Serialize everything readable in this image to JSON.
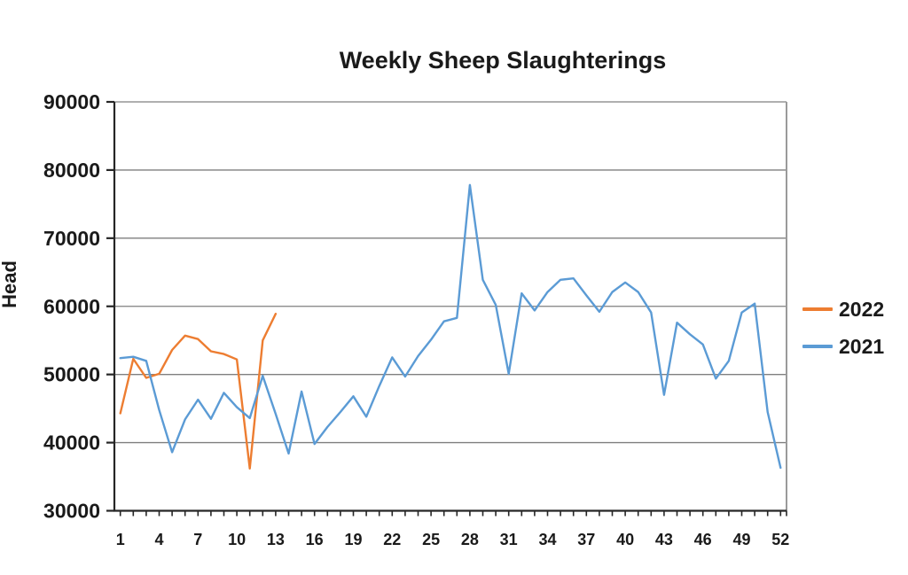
{
  "title": "Weekly Sheep Slaughterings",
  "y_axis": {
    "label": "Head",
    "min": 30000,
    "max": 90000,
    "step": 10000,
    "tick_labels": [
      "30000",
      "40000",
      "50000",
      "60000",
      "70000",
      "80000",
      "90000"
    ]
  },
  "x_axis": {
    "tick_labels": [
      "1",
      "4",
      "7",
      "10",
      "13",
      "16",
      "19",
      "22",
      "25",
      "28",
      "31",
      "34",
      "37",
      "40",
      "43",
      "46",
      "49",
      "52"
    ],
    "weeks_total": 52
  },
  "legend": [
    {
      "label": "2022",
      "color": "#ED7D31"
    },
    {
      "label": "2021",
      "color": "#5B9BD5"
    }
  ],
  "chart_data": {
    "type": "line",
    "title": "Weekly Sheep Slaughterings",
    "xlabel": "",
    "ylabel": "Head",
    "x": [
      1,
      2,
      3,
      4,
      5,
      6,
      7,
      8,
      9,
      10,
      11,
      12,
      13,
      14,
      15,
      16,
      17,
      18,
      19,
      20,
      21,
      22,
      23,
      24,
      25,
      26,
      27,
      28,
      29,
      30,
      31,
      32,
      33,
      34,
      35,
      36,
      37,
      38,
      39,
      40,
      41,
      42,
      43,
      44,
      45,
      46,
      47,
      48,
      49,
      50,
      51,
      52
    ],
    "xticks": [
      1,
      4,
      7,
      10,
      13,
      16,
      19,
      22,
      25,
      28,
      31,
      34,
      37,
      40,
      43,
      46,
      49,
      52
    ],
    "ylim": [
      30000,
      90000
    ],
    "ytick_step": 10000,
    "grid": true,
    "legend_position": "right",
    "series": [
      {
        "name": "2022",
        "color": "#ED7D31",
        "x_start": 1,
        "values": [
          44300,
          52300,
          49500,
          50100,
          53600,
          55700,
          55200,
          53400,
          53000,
          52200,
          36200,
          55000,
          58900
        ]
      },
      {
        "name": "2021",
        "color": "#5B9BD5",
        "x_start": 1,
        "values": [
          52400,
          52600,
          52000,
          44800,
          38600,
          43400,
          46300,
          43500,
          47300,
          45200,
          43600,
          49800,
          44200,
          38400,
          47500,
          39800,
          42300,
          44500,
          46800,
          43800,
          48300,
          52500,
          49700,
          52700,
          55100,
          57800,
          58300,
          77800,
          63900,
          60200,
          50100,
          61900,
          59400,
          62100,
          63900,
          64100,
          61600,
          59200,
          62100,
          63500,
          62100,
          59100,
          47000,
          57600,
          55900,
          54400,
          49400,
          52000,
          59100,
          60400,
          44500,
          36300
        ]
      }
    ]
  }
}
